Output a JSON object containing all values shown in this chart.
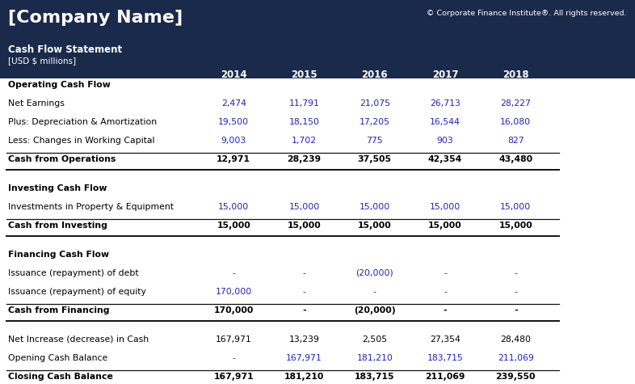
{
  "company_name": "[Company Name]",
  "copyright": "© Corporate Finance Institute®. All rights reserved.",
  "subtitle1": "Cash Flow Statement",
  "subtitle2": "[USD $ millions]",
  "header_bg": "#1a2a4a",
  "header_text": "#ffffff",
  "body_bg": "#ffffff",
  "years": [
    "2014",
    "2015",
    "2016",
    "2017",
    "2018"
  ],
  "blue_color": "#2222bb",
  "black_color": "#000000",
  "rows": [
    {
      "label": "Operating Cash Flow",
      "type": "section_header",
      "values": [
        "",
        "",
        "",
        "",
        ""
      ]
    },
    {
      "label": "Net Earnings",
      "type": "data_blue",
      "values": [
        "2,474",
        "11,791",
        "21,075",
        "26,713",
        "28,227"
      ]
    },
    {
      "label": "Plus: Depreciation & Amortization",
      "type": "data_blue",
      "values": [
        "19,500",
        "18,150",
        "17,205",
        "16,544",
        "16,080"
      ]
    },
    {
      "label": "Less: Changes in Working Capital",
      "type": "data_blue",
      "values": [
        "9,003",
        "1,702",
        "775",
        "903",
        "827"
      ]
    },
    {
      "label": "Cash from Operations",
      "type": "total_bold",
      "values": [
        "12,971",
        "28,239",
        "37,505",
        "42,354",
        "43,480"
      ]
    },
    {
      "label": "",
      "type": "spacer",
      "values": [
        "",
        "",
        "",
        "",
        ""
      ]
    },
    {
      "label": "Investing Cash Flow",
      "type": "section_header",
      "values": [
        "",
        "",
        "",
        "",
        ""
      ]
    },
    {
      "label": "Investments in Property & Equipment",
      "type": "data_blue",
      "values": [
        "15,000",
        "15,000",
        "15,000",
        "15,000",
        "15,000"
      ]
    },
    {
      "label": "Cash from Investing",
      "type": "total_bold",
      "values": [
        "15,000",
        "15,000",
        "15,000",
        "15,000",
        "15,000"
      ]
    },
    {
      "label": "",
      "type": "spacer",
      "values": [
        "",
        "",
        "",
        "",
        ""
      ]
    },
    {
      "label": "Financing Cash Flow",
      "type": "section_header",
      "values": [
        "",
        "",
        "",
        "",
        ""
      ]
    },
    {
      "label": "Issuance (repayment) of debt",
      "type": "data_blue",
      "values": [
        "-",
        "-",
        "(20,000)",
        "-",
        "-"
      ]
    },
    {
      "label": "Issuance (repayment) of equity",
      "type": "data_blue",
      "values": [
        "170,000",
        "-",
        "-",
        "-",
        "-"
      ]
    },
    {
      "label": "Cash from Financing",
      "type": "total_bold",
      "values": [
        "170,000",
        "-",
        "(20,000)",
        "-",
        "-"
      ]
    },
    {
      "label": "",
      "type": "spacer",
      "values": [
        "",
        "",
        "",
        "",
        ""
      ]
    },
    {
      "label": "Net Increase (decrease) in Cash",
      "type": "data_black",
      "values": [
        "167,971",
        "13,239",
        "2,505",
        "27,354",
        "28,480"
      ]
    },
    {
      "label": "Opening Cash Balance",
      "type": "data_blue",
      "values": [
        "-",
        "167,971",
        "181,210",
        "183,715",
        "211,069"
      ]
    },
    {
      "label": "Closing Cash Balance",
      "type": "total_bold",
      "values": [
        "167,971",
        "181,210",
        "183,715",
        "211,069",
        "239,550"
      ]
    }
  ]
}
